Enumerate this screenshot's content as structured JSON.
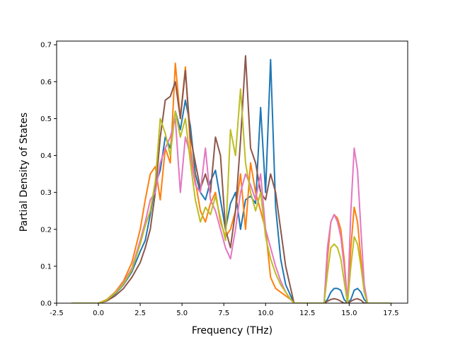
{
  "chart_data": {
    "type": "line",
    "title": "",
    "xlabel": "Frequency (THz)",
    "ylabel": "Partial Density of States",
    "xlim": [
      -2.5,
      18.5
    ],
    "ylim": [
      0.0,
      0.71
    ],
    "xticks": [
      "-2.5",
      "0.0",
      "2.5",
      "5.0",
      "7.5",
      "10.0",
      "12.5",
      "15.0",
      "17.5"
    ],
    "yticks": [
      "0.0",
      "0.1",
      "0.2",
      "0.3",
      "0.4",
      "0.5",
      "0.6",
      "0.7"
    ],
    "grid": false,
    "legend": "none",
    "series": [
      {
        "color": "#1f77b4",
        "x": [
          -1.6,
          0,
          0.5,
          1,
          1.5,
          2,
          2.5,
          2.8,
          3.1,
          3.4,
          3.7,
          4,
          4.3,
          4.6,
          4.9,
          5.2,
          5.5,
          5.8,
          6.1,
          6.4,
          6.7,
          7,
          7.3,
          7.6,
          7.9,
          8.2,
          8.5,
          8.8,
          9.1,
          9.4,
          9.7,
          10,
          10.3,
          10.6,
          10.9,
          11.2,
          11.5,
          11.7,
          13.5,
          13.7,
          13.9,
          14.1,
          14.3,
          14.5,
          14.7,
          14.9,
          15.1,
          15.3,
          15.5,
          15.7,
          15.9,
          16.1,
          17.5
        ],
        "y": [
          0,
          0,
          0.008,
          0.025,
          0.05,
          0.085,
          0.14,
          0.17,
          0.24,
          0.32,
          0.36,
          0.45,
          0.42,
          0.52,
          0.47,
          0.55,
          0.48,
          0.35,
          0.3,
          0.28,
          0.33,
          0.36,
          0.28,
          0.2,
          0.27,
          0.3,
          0.2,
          0.28,
          0.29,
          0.27,
          0.53,
          0.3,
          0.66,
          0.26,
          0.12,
          0.05,
          0.02,
          0,
          0,
          0.01,
          0.03,
          0.04,
          0.04,
          0.035,
          0.01,
          0,
          0.01,
          0.035,
          0.04,
          0.03,
          0.01,
          0,
          0
        ]
      },
      {
        "color": "#ff7f0e",
        "x": [
          -1.6,
          0,
          0.5,
          1,
          1.5,
          2,
          2.5,
          2.8,
          3.1,
          3.4,
          3.7,
          4,
          4.3,
          4.6,
          4.9,
          5.2,
          5.5,
          5.8,
          6.1,
          6.4,
          6.7,
          7,
          7.3,
          7.6,
          7.9,
          8.2,
          8.5,
          8.8,
          9.1,
          9.4,
          9.7,
          10,
          10.3,
          10.6,
          10.9,
          11.2,
          11.5,
          11.7,
          13.5,
          13.7,
          13.9,
          14.1,
          14.3,
          14.5,
          14.7,
          14.9,
          15.1,
          15.3,
          15.5,
          15.7,
          15.9,
          16.1,
          17.5
        ],
        "y": [
          0,
          0,
          0.01,
          0.03,
          0.06,
          0.11,
          0.2,
          0.28,
          0.35,
          0.37,
          0.28,
          0.42,
          0.38,
          0.65,
          0.5,
          0.64,
          0.42,
          0.33,
          0.25,
          0.22,
          0.27,
          0.3,
          0.22,
          0.18,
          0.2,
          0.25,
          0.35,
          0.2,
          0.38,
          0.3,
          0.25,
          0.2,
          0.07,
          0.04,
          0.03,
          0.02,
          0.01,
          0,
          0,
          0.12,
          0.22,
          0.24,
          0.23,
          0.2,
          0.12,
          0,
          0.15,
          0.26,
          0.22,
          0.12,
          0.04,
          0,
          0
        ]
      },
      {
        "color": "#8c564b",
        "x": [
          -1.6,
          0,
          0.5,
          1,
          1.5,
          2,
          2.5,
          2.8,
          3.1,
          3.4,
          3.7,
          4,
          4.3,
          4.6,
          4.9,
          5.2,
          5.5,
          5.8,
          6.1,
          6.4,
          6.7,
          7,
          7.3,
          7.6,
          7.9,
          8.2,
          8.5,
          8.8,
          9.1,
          9.4,
          9.7,
          10,
          10.3,
          10.6,
          10.9,
          11.2,
          11.5,
          11.7,
          13.5,
          13.7,
          13.9,
          14.1,
          14.3,
          14.5,
          14.7,
          14.9,
          15.1,
          15.3,
          15.5,
          15.7,
          15.9,
          16.1,
          17.5
        ],
        "y": [
          0,
          0,
          0.006,
          0.02,
          0.04,
          0.07,
          0.11,
          0.15,
          0.2,
          0.3,
          0.45,
          0.55,
          0.56,
          0.6,
          0.5,
          0.63,
          0.45,
          0.38,
          0.31,
          0.35,
          0.3,
          0.45,
          0.4,
          0.2,
          0.15,
          0.25,
          0.44,
          0.67,
          0.42,
          0.38,
          0.3,
          0.28,
          0.35,
          0.3,
          0.2,
          0.1,
          0.04,
          0,
          0,
          0.005,
          0.01,
          0.012,
          0.01,
          0.005,
          0,
          0,
          0.005,
          0.01,
          0.012,
          0.008,
          0,
          0,
          0
        ]
      },
      {
        "color": "#e377c2",
        "x": [
          -1.6,
          0,
          0.5,
          1,
          1.5,
          2,
          2.5,
          2.8,
          3.1,
          3.4,
          3.7,
          4,
          4.3,
          4.6,
          4.9,
          5.2,
          5.5,
          5.8,
          6.1,
          6.4,
          6.7,
          7,
          7.3,
          7.6,
          7.9,
          8.2,
          8.5,
          8.8,
          9.1,
          9.4,
          9.7,
          10,
          10.3,
          10.6,
          10.9,
          11.2,
          11.5,
          11.7,
          13.5,
          13.7,
          13.9,
          14.1,
          14.3,
          14.5,
          14.7,
          14.9,
          15.1,
          15.3,
          15.5,
          15.7,
          15.9,
          16.1,
          17.5
        ],
        "y": [
          0,
          0,
          0.009,
          0.028,
          0.055,
          0.095,
          0.17,
          0.22,
          0.28,
          0.3,
          0.38,
          0.42,
          0.45,
          0.5,
          0.3,
          0.45,
          0.4,
          0.32,
          0.3,
          0.42,
          0.28,
          0.25,
          0.2,
          0.15,
          0.12,
          0.2,
          0.3,
          0.35,
          0.32,
          0.28,
          0.35,
          0.2,
          0.15,
          0.1,
          0.06,
          0.03,
          0.01,
          0,
          0,
          0.15,
          0.22,
          0.24,
          0.22,
          0.18,
          0.1,
          0,
          0.25,
          0.42,
          0.36,
          0.2,
          0.05,
          0,
          0
        ]
      },
      {
        "color": "#bcbd22",
        "x": [
          -1.6,
          0,
          0.5,
          1,
          1.5,
          2,
          2.5,
          2.8,
          3.1,
          3.4,
          3.7,
          4,
          4.3,
          4.6,
          4.9,
          5.2,
          5.5,
          5.8,
          6.1,
          6.4,
          6.7,
          7,
          7.3,
          7.6,
          7.9,
          8.2,
          8.5,
          8.8,
          9.1,
          9.4,
          9.7,
          10,
          10.3,
          10.6,
          10.9,
          11.2,
          11.5,
          11.7,
          13.5,
          13.7,
          13.9,
          14.1,
          14.3,
          14.5,
          14.7,
          14.9,
          15.1,
          15.3,
          15.5,
          15.7,
          15.9,
          16.1,
          17.5
        ],
        "y": [
          0,
          0,
          0.009,
          0.027,
          0.052,
          0.09,
          0.16,
          0.21,
          0.25,
          0.33,
          0.5,
          0.46,
          0.4,
          0.52,
          0.45,
          0.5,
          0.38,
          0.28,
          0.22,
          0.26,
          0.24,
          0.29,
          0.23,
          0.17,
          0.47,
          0.4,
          0.58,
          0.38,
          0.3,
          0.25,
          0.3,
          0.18,
          0.12,
          0.08,
          0.05,
          0.03,
          0.01,
          0,
          0,
          0.08,
          0.15,
          0.16,
          0.15,
          0.12,
          0.06,
          0,
          0.1,
          0.18,
          0.16,
          0.1,
          0.03,
          0,
          0
        ]
      }
    ]
  }
}
